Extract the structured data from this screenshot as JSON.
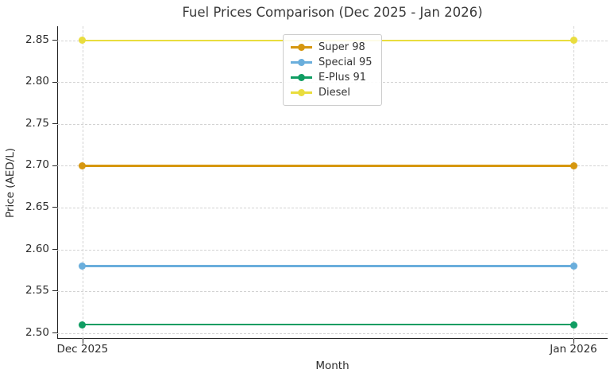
{
  "title": "Fuel Prices Comparison (Dec 2025 - Jan 2026)",
  "chart_data": {
    "type": "line",
    "x": [
      "Dec 2025",
      "Jan 2026"
    ],
    "series": [
      {
        "name": "Super 98",
        "values": [
          2.7,
          2.7
        ],
        "color": "#D6970F"
      },
      {
        "name": "Special 95",
        "values": [
          2.58,
          2.58
        ],
        "color": "#6AAEDC"
      },
      {
        "name": "E-Plus 91",
        "values": [
          2.51,
          2.51
        ],
        "color": "#0F9D62"
      },
      {
        "name": "Diesel",
        "values": [
          2.85,
          2.85
        ],
        "color": "#E9DD3E"
      }
    ],
    "xlabel": "Month",
    "ylabel": "Price (AED/L)",
    "yticks": [
      2.5,
      2.55,
      2.6,
      2.65,
      2.7,
      2.75,
      2.8,
      2.85
    ],
    "ylim": [
      2.5,
      2.85
    ],
    "grid": true,
    "grid_color": "#d3d3d3",
    "axis_color": "#262626",
    "text_color": "#2d2d2d",
    "legend_position": "upper center"
  }
}
